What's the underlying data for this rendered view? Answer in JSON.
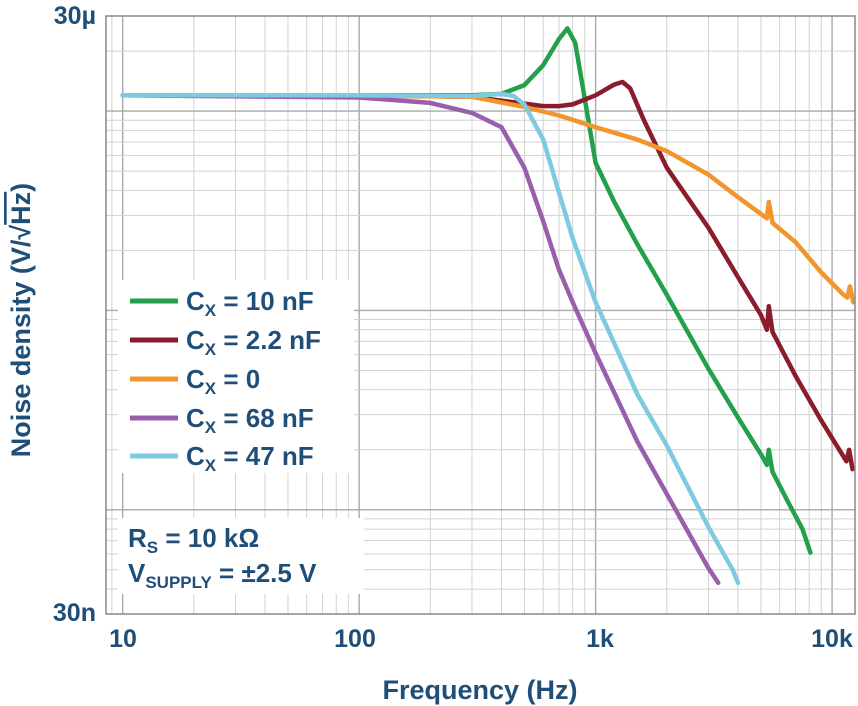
{
  "chart_data": {
    "type": "line",
    "xlabel": "Frequency (Hz)",
    "ylabel_main": "Noise density (V/",
    "ylabel_sqrt": "√",
    "ylabel_unit": "Hz",
    "ylabel_end": ")",
    "xscale": "log",
    "yscale": "log",
    "xlim": [
      8.5,
      12500
    ],
    "ylim": [
      3e-08,
      3e-05
    ],
    "grid": true,
    "legend_position": "left-middle",
    "x_ticks": [
      {
        "value": 10,
        "label": "10"
      },
      {
        "value": 100,
        "label": "100"
      },
      {
        "value": 1000,
        "label": "1k"
      },
      {
        "value": 10000,
        "label": "10k"
      }
    ],
    "y_ticks": [
      {
        "value": 3e-05,
        "label": "30µ"
      },
      {
        "value": 3e-08,
        "label": "30n"
      }
    ],
    "annotation": {
      "rs_main": "R",
      "rs_sub": "S",
      "rs_rest": " = 10 kΩ",
      "vs_main": "V",
      "vs_sub": "SUPPLY",
      "vs_rest": " = ±2.5 V"
    },
    "series": [
      {
        "name_main": "C",
        "name_sub": "X",
        "name_rest": " = 10 nF",
        "color": "#22a04b",
        "points": [
          [
            10,
            1.2e-05
          ],
          [
            100,
            1.2e-05
          ],
          [
            300,
            1.2e-05
          ],
          [
            400,
            1.22e-05
          ],
          [
            500,
            1.35e-05
          ],
          [
            600,
            1.7e-05
          ],
          [
            700,
            2.3e-05
          ],
          [
            760,
            2.6e-05
          ],
          [
            820,
            2.2e-05
          ],
          [
            900,
            1.15e-05
          ],
          [
            1000,
            5.5e-06
          ],
          [
            1200,
            3.5e-06
          ],
          [
            1500,
            2.15e-06
          ],
          [
            2000,
            1.2e-06
          ],
          [
            3000,
            5.1e-07
          ],
          [
            4000,
            2.9e-07
          ],
          [
            5000,
            1.9e-07
          ],
          [
            5300,
            1.68e-07
          ],
          [
            5400,
            2e-07
          ],
          [
            5600,
            1.55e-07
          ],
          [
            6500,
            1.1e-07
          ],
          [
            7500,
            8e-08
          ],
          [
            8100,
            6.1e-08
          ]
        ]
      },
      {
        "name_main": "C",
        "name_sub": "X",
        "name_rest": " = 2.2 nF",
        "color": "#8b1c2b",
        "points": [
          [
            10,
            1.2e-05
          ],
          [
            100,
            1.2e-05
          ],
          [
            300,
            1.18e-05
          ],
          [
            500,
            1.09e-05
          ],
          [
            600,
            1.06e-05
          ],
          [
            700,
            1.06e-05
          ],
          [
            800,
            1.08e-05
          ],
          [
            1000,
            1.2e-05
          ],
          [
            1200,
            1.36e-05
          ],
          [
            1300,
            1.4e-05
          ],
          [
            1400,
            1.3e-05
          ],
          [
            1600,
            9e-06
          ],
          [
            2000,
            5.2e-06
          ],
          [
            3000,
            2.6e-06
          ],
          [
            4000,
            1.47e-06
          ],
          [
            5000,
            9.5e-07
          ],
          [
            5300,
            8e-07
          ],
          [
            5400,
            1.05e-06
          ],
          [
            5600,
            7.8e-07
          ],
          [
            7000,
            4.7e-07
          ],
          [
            9000,
            2.8e-07
          ],
          [
            11500,
            1.75e-07
          ],
          [
            11800,
            2e-07
          ],
          [
            12200,
            1.6e-07
          ]
        ]
      },
      {
        "name_main": "C",
        "name_sub": "X",
        "name_rest": " = 0",
        "color": "#f0962d",
        "points": [
          [
            10,
            1.2e-05
          ],
          [
            100,
            1.2e-05
          ],
          [
            300,
            1.18e-05
          ],
          [
            500,
            1.05e-05
          ],
          [
            700,
            9.5e-06
          ],
          [
            1000,
            8.3e-06
          ],
          [
            1500,
            7.2e-06
          ],
          [
            2000,
            6.3e-06
          ],
          [
            3000,
            4.8e-06
          ],
          [
            4000,
            3.7e-06
          ],
          [
            5000,
            3.05e-06
          ],
          [
            5300,
            2.9e-06
          ],
          [
            5400,
            3.5e-06
          ],
          [
            5600,
            2.75e-06
          ],
          [
            7000,
            2.2e-06
          ],
          [
            9000,
            1.55e-06
          ],
          [
            11000,
            1.22e-06
          ],
          [
            11600,
            1.16e-06
          ],
          [
            11900,
            1.32e-06
          ],
          [
            12300,
            1.1e-06
          ]
        ]
      },
      {
        "name_main": "C",
        "name_sub": "X",
        "name_rest": " = 68 nF",
        "color": "#9a5fac",
        "points": [
          [
            10,
            1.2e-05
          ],
          [
            100,
            1.17e-05
          ],
          [
            200,
            1.1e-05
          ],
          [
            300,
            9.8e-06
          ],
          [
            400,
            8.3e-06
          ],
          [
            500,
            5.2e-06
          ],
          [
            600,
            2.8e-06
          ],
          [
            700,
            1.6e-06
          ],
          [
            800,
            1.1e-06
          ],
          [
            1000,
            6.1e-07
          ],
          [
            1500,
            2.2e-07
          ],
          [
            2000,
            1.2e-07
          ],
          [
            3000,
            5.1e-08
          ],
          [
            3300,
            4.3e-08
          ]
        ]
      },
      {
        "name_main": "C",
        "name_sub": "X",
        "name_rest": " = 47 nF",
        "color": "#7ecae0",
        "points": [
          [
            10,
            1.2e-05
          ],
          [
            100,
            1.2e-05
          ],
          [
            300,
            1.19e-05
          ],
          [
            400,
            1.22e-05
          ],
          [
            450,
            1.19e-05
          ],
          [
            500,
            1.08e-05
          ],
          [
            600,
            7.2e-06
          ],
          [
            700,
            3.9e-06
          ],
          [
            800,
            2.3e-06
          ],
          [
            1000,
            1.1e-06
          ],
          [
            1500,
            3.8e-07
          ],
          [
            2000,
            2.1e-07
          ],
          [
            3000,
            8.2e-08
          ],
          [
            3800,
            5e-08
          ],
          [
            4000,
            4.3e-08
          ]
        ]
      }
    ]
  }
}
